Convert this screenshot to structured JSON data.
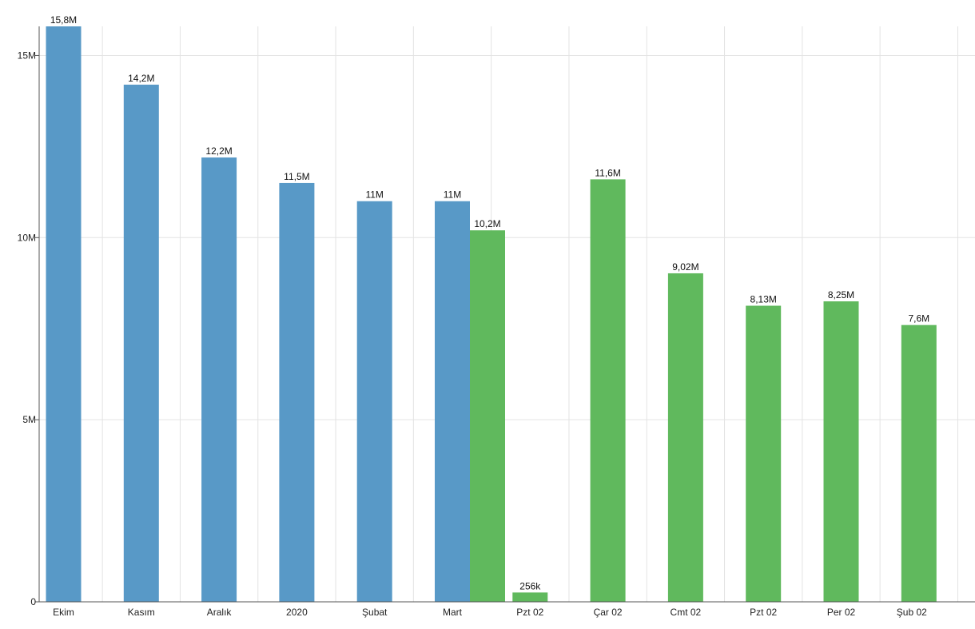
{
  "chart_data": {
    "type": "bar",
    "categories": [
      "Ekim",
      "Kasım",
      "Aralık",
      "2020",
      "Şubat",
      "Mart",
      "Pzt 02",
      "Çar 02",
      "Cmt 02",
      "Pzt 02",
      "Per 02",
      "Şub 02"
    ],
    "series": [
      {
        "color": "#5899c7",
        "values": [
          15800000,
          14200000,
          12200000,
          11500000,
          11000000,
          11000000,
          null,
          null,
          null,
          null,
          null,
          null
        ],
        "labels": [
          "15,8M",
          "14,2M",
          "12,2M",
          "11,5M",
          "11M",
          "11M",
          null,
          null,
          null,
          null,
          null,
          null
        ]
      },
      {
        "color": "#60b95d",
        "values": [
          null,
          null,
          null,
          null,
          null,
          10200000,
          256000,
          11600000,
          9020000,
          8130000,
          8250000,
          7600000
        ],
        "labels": [
          null,
          null,
          null,
          null,
          null,
          "10,2M",
          "256k",
          "11,6M",
          "9,02M",
          "8,13M",
          "8,25M",
          "7,6M"
        ]
      }
    ],
    "ylim": [
      0,
      15800000
    ],
    "yticks": [
      {
        "value": 0,
        "label": "0"
      },
      {
        "value": 5000000,
        "label": "5M"
      },
      {
        "value": 10000000,
        "label": "10M"
      },
      {
        "value": 15000000,
        "label": "15M"
      }
    ],
    "grid": true,
    "legend": "none"
  }
}
